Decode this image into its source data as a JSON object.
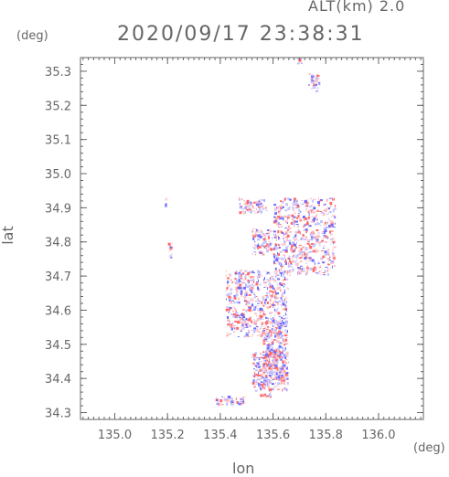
{
  "subtitle": "ALT(km) 2.0",
  "title": "2020/09/17 23:38:31",
  "chart_data": {
    "type": "heatmap",
    "title": "2020/09/17 23:38:31",
    "subtitle": "ALT(km) 2.0",
    "xlabel": "lon",
    "ylabel": "lat",
    "xunit": "(deg)",
    "yunit": "(deg)",
    "xlim": [
      134.87,
      136.17
    ],
    "ylim": [
      34.28,
      35.34
    ],
    "xticks": [
      135.0,
      135.2,
      135.4,
      135.6,
      135.8,
      136.0
    ],
    "xtick_labels": [
      "135.0",
      "135.2",
      "135.4",
      "135.6",
      "135.8",
      "136.0"
    ],
    "yticks": [
      34.3,
      34.4,
      34.5,
      34.6,
      34.7,
      34.8,
      34.9,
      35.0,
      35.1,
      35.2,
      35.3
    ],
    "ytick_labels": [
      "34.3",
      "34.4",
      "34.5",
      "34.6",
      "34.7",
      "34.8",
      "34.9",
      "35.0",
      "35.1",
      "35.2",
      "35.3"
    ],
    "grid": false,
    "colors": {
      "positive": "#ff6b6b",
      "negative": "#6b6bff",
      "light_pos": "#ffc4c4",
      "light_neg": "#c4c4ff",
      "axis": "#666666"
    },
    "echo_regions": [
      {
        "lon": [
          135.73,
          135.78
        ],
        "lat": [
          35.24,
          35.3
        ]
      },
      {
        "lon": [
          135.69,
          135.72
        ],
        "lat": [
          35.32,
          35.34
        ]
      },
      {
        "lon": [
          135.19,
          135.2
        ],
        "lat": [
          34.9,
          34.93
        ]
      },
      {
        "lon": [
          135.2,
          135.22
        ],
        "lat": [
          34.75,
          34.8
        ]
      },
      {
        "lon": [
          135.47,
          135.58
        ],
        "lat": [
          34.88,
          34.93
        ]
      },
      {
        "lon": [
          135.6,
          135.84
        ],
        "lat": [
          34.7,
          34.93
        ]
      },
      {
        "lon": [
          135.52,
          135.6
        ],
        "lat": [
          34.76,
          34.84
        ]
      },
      {
        "lon": [
          135.42,
          135.66
        ],
        "lat": [
          34.52,
          34.72
        ]
      },
      {
        "lon": [
          135.56,
          135.66
        ],
        "lat": [
          34.38,
          34.58
        ]
      },
      {
        "lon": [
          135.52,
          135.66
        ],
        "lat": [
          34.36,
          34.48
        ]
      },
      {
        "lon": [
          135.38,
          135.5
        ],
        "lat": [
          34.32,
          34.35
        ]
      },
      {
        "lon": [
          135.55,
          135.6
        ],
        "lat": [
          34.34,
          34.36
        ]
      }
    ]
  }
}
